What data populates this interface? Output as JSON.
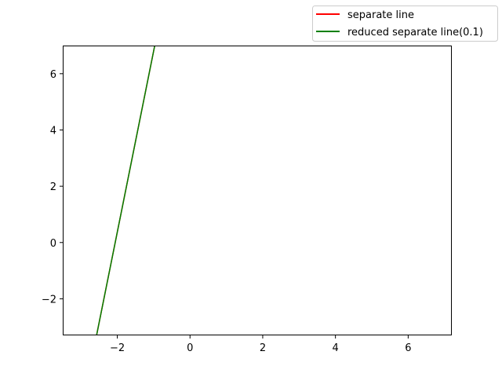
{
  "chart_data": {
    "type": "line",
    "title": "",
    "xlabel": "",
    "ylabel": "",
    "xlim": [
      -3.5,
      7.2
    ],
    "ylim": [
      -3.3,
      7.0
    ],
    "xticks": [
      -2,
      0,
      2,
      4,
      6
    ],
    "yticks": [
      -2,
      0,
      2,
      4,
      6
    ],
    "xtick_labels": [
      "−2",
      "0",
      "2",
      "4",
      "6"
    ],
    "ytick_labels": [
      "−2",
      "0",
      "2",
      "4",
      "6"
    ],
    "grid": false,
    "legend_position": "upper right, outside axes",
    "series": [
      {
        "name": "separate line",
        "color": "#ff0000",
        "x": [
          -2.57,
          -0.97
        ],
        "y": [
          -3.3,
          7.0
        ]
      },
      {
        "name": "reduced separate line(0.1)",
        "color": "#008000",
        "x": [
          -2.57,
          -0.97
        ],
        "y": [
          -3.3,
          7.0
        ]
      }
    ]
  }
}
